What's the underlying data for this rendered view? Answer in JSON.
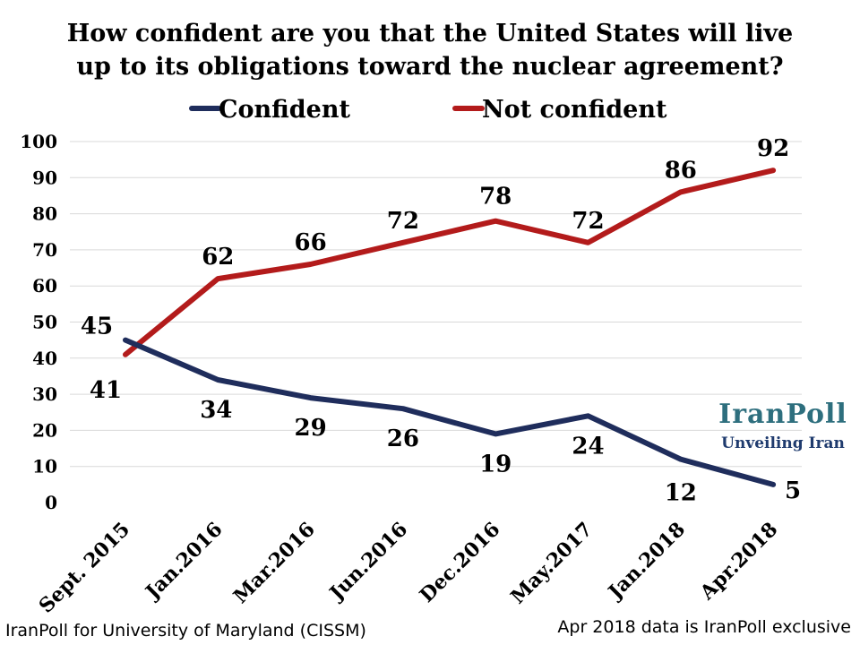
{
  "chart_data": {
    "type": "line",
    "title_lines": [
      "How confident are you that the United States will live",
      "up to its obligations toward the nuclear agreement?"
    ],
    "categories": [
      "Sept. 2015",
      "Jan.2016",
      "Mar.2016",
      "Jun.2016",
      "Dec.2016",
      "May.2017",
      "Jan.2018",
      "Apr.2018"
    ],
    "series": [
      {
        "name": "Confident",
        "color": "#1f2d5c",
        "values": [
          45,
          34,
          29,
          26,
          19,
          24,
          12,
          5
        ]
      },
      {
        "name": "Not confident",
        "color": "#b31b1b",
        "values": [
          41,
          62,
          66,
          72,
          78,
          72,
          86,
          92
        ]
      }
    ],
    "ylim": [
      0,
      100
    ],
    "yticks": [
      0,
      10,
      20,
      30,
      40,
      50,
      60,
      70,
      80,
      90,
      100
    ],
    "grid": true,
    "legend_position": "top-center"
  },
  "branding": {
    "name": "IranPoll",
    "tagline": "Unveiling Iran"
  },
  "footer": {
    "source": "IranPoll for University of Maryland (CISSM)",
    "note": "Apr 2018 data is IranPoll exclusive"
  }
}
